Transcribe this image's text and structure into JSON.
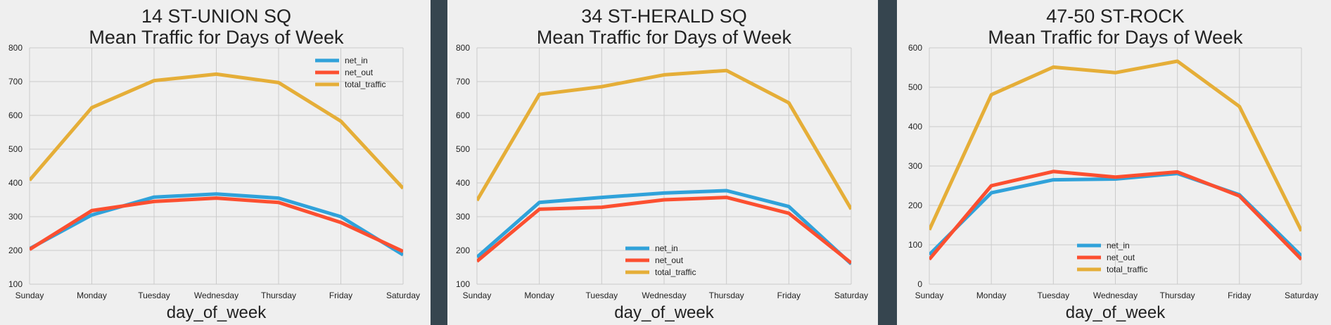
{
  "colors": {
    "net_in": "#30a2da",
    "net_out": "#fc4f30",
    "total_traffic": "#e5ae38",
    "panel_bg": "#efefef",
    "page_bg": "#36454f",
    "grid": "#cbcbcb"
  },
  "chart_data": [
    {
      "type": "line",
      "title": "14 ST-UNION SQ\nMean Traffic for Days of Week",
      "xlabel": "day_of_week",
      "ylabel": "",
      "categories": [
        "Sunday",
        "Monday",
        "Tuesday",
        "Wednesday",
        "Thursday",
        "Friday",
        "Saturday"
      ],
      "ylim": [
        100,
        800
      ],
      "yticks": [
        100,
        200,
        300,
        400,
        500,
        600,
        700,
        800
      ],
      "grid": true,
      "legend": "top-right",
      "series": [
        {
          "name": "net_in",
          "values": [
            205,
            305,
            358,
            367,
            355,
            300,
            187
          ]
        },
        {
          "name": "net_out",
          "values": [
            203,
            318,
            345,
            355,
            342,
            283,
            197
          ]
        },
        {
          "name": "total_traffic",
          "values": [
            408,
            623,
            703,
            722,
            697,
            583,
            384
          ]
        }
      ]
    },
    {
      "type": "line",
      "title": "34 ST-HERALD SQ\nMean Traffic for Days of Week",
      "xlabel": "day_of_week",
      "ylabel": "",
      "categories": [
        "Sunday",
        "Monday",
        "Tuesday",
        "Wednesday",
        "Thursday",
        "Friday",
        "Saturday"
      ],
      "ylim": [
        100,
        800
      ],
      "yticks": [
        100,
        200,
        300,
        400,
        500,
        600,
        700,
        800
      ],
      "grid": true,
      "legend": "lower-center",
      "series": [
        {
          "name": "net_in",
          "values": [
            180,
            342,
            357,
            370,
            377,
            330,
            160
          ]
        },
        {
          "name": "net_out",
          "values": [
            168,
            322,
            328,
            350,
            357,
            310,
            163
          ]
        },
        {
          "name": "total_traffic",
          "values": [
            348,
            662,
            685,
            720,
            733,
            637,
            322
          ]
        }
      ]
    },
    {
      "type": "line",
      "title": "47-50 ST-ROCK\nMean Traffic for Days of Week",
      "xlabel": "day_of_week",
      "ylabel": "",
      "categories": [
        "Sunday",
        "Monday",
        "Tuesday",
        "Wednesday",
        "Thursday",
        "Friday",
        "Saturday"
      ],
      "ylim": [
        0,
        600
      ],
      "yticks": [
        0,
        100,
        200,
        300,
        400,
        500,
        600
      ],
      "grid": true,
      "legend": "lower-center",
      "series": [
        {
          "name": "net_in",
          "values": [
            75,
            232,
            265,
            267,
            281,
            227,
            72
          ]
        },
        {
          "name": "net_out",
          "values": [
            63,
            250,
            286,
            272,
            285,
            224,
            63
          ]
        },
        {
          "name": "total_traffic",
          "values": [
            138,
            481,
            551,
            537,
            566,
            451,
            135
          ]
        }
      ]
    }
  ]
}
